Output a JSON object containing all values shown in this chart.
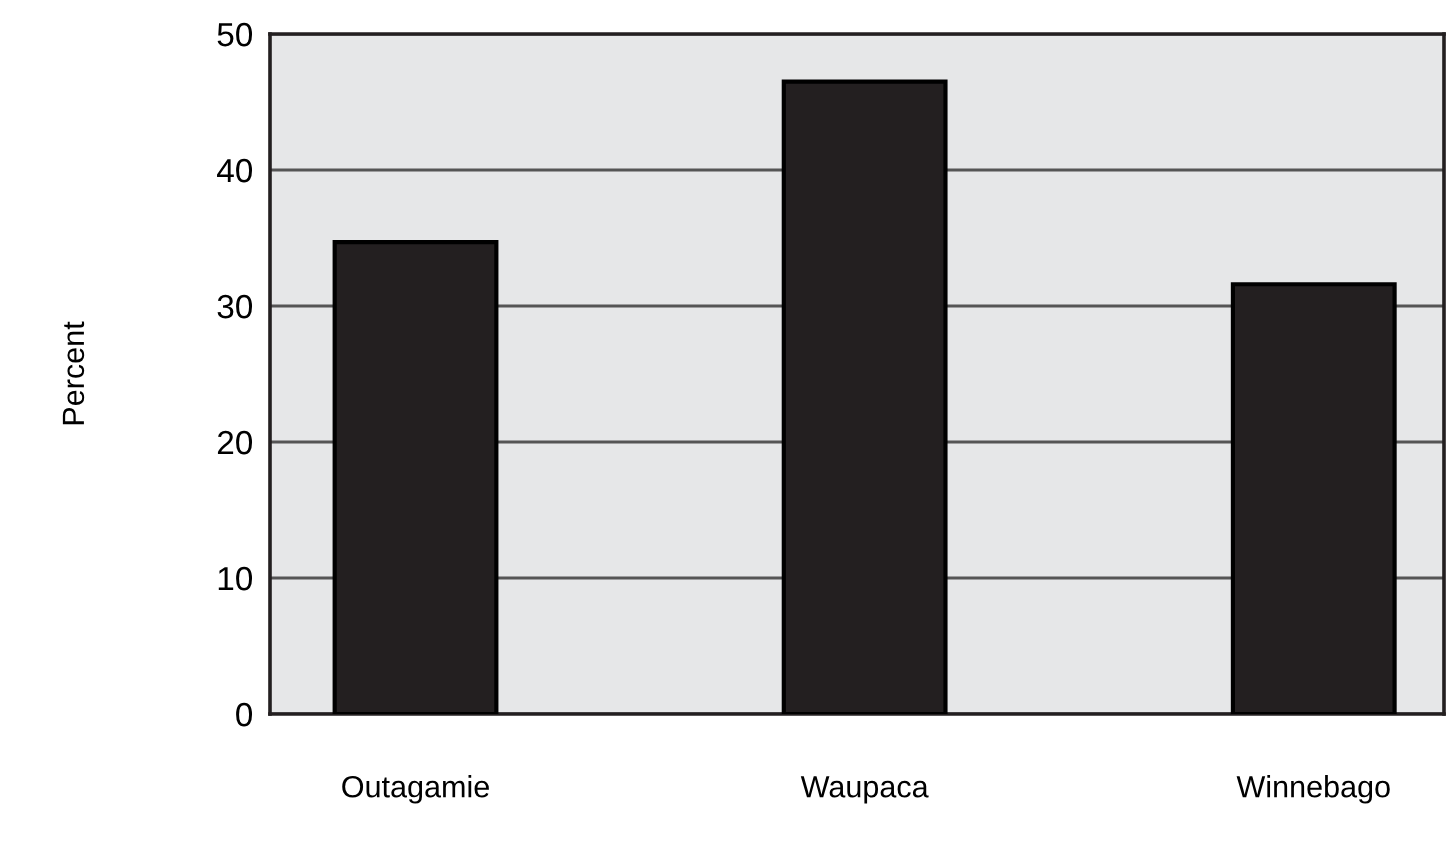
{
  "chart_data": {
    "type": "bar",
    "ylabel": "Percent",
    "categories": [
      "Outagamie",
      "Waupaca",
      "Winnebago"
    ],
    "values": [
      34.7,
      46.5,
      31.6
    ],
    "color": "#231f20",
    "ylim": [
      0,
      50
    ],
    "yticks": [
      0,
      10,
      20,
      30,
      40,
      50
    ],
    "grid": "y"
  }
}
